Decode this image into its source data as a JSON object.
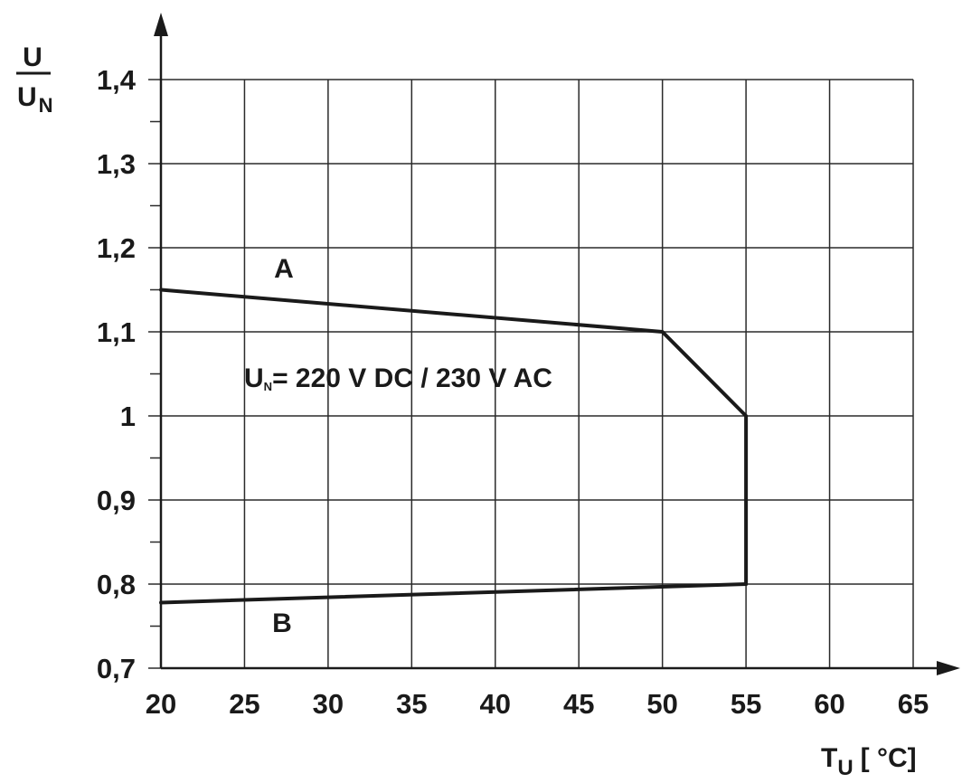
{
  "chart_data": {
    "type": "line",
    "ylabel_num": "U",
    "ylabel_den": "U",
    "ylabel_den_sub": "N",
    "xlabel_main": "T",
    "xlabel_sub": "U",
    "xlabel_unit": "[ °C]",
    "xlim": [
      20,
      65
    ],
    "ylim": [
      0.7,
      1.4
    ],
    "x_ticks": [
      20,
      25,
      30,
      35,
      40,
      45,
      50,
      55,
      60,
      65
    ],
    "x_tick_labels": [
      "20",
      "25",
      "30",
      "35",
      "40",
      "45",
      "50",
      "55",
      "60",
      "65"
    ],
    "y_ticks": [
      0.7,
      0.8,
      0.9,
      1.0,
      1.1,
      1.2,
      1.3,
      1.4
    ],
    "y_tick_labels": [
      "0,7",
      "0,8",
      "0,9",
      "1",
      "1,1",
      "1,2",
      "1,3",
      "1,4"
    ],
    "grid": true,
    "series": [
      {
        "name": "A",
        "x": [
          20,
          50,
          55,
          55
        ],
        "y": [
          1.15,
          1.1,
          1.0,
          0.8
        ]
      },
      {
        "name": "B",
        "x": [
          20,
          55
        ],
        "y": [
          0.778,
          0.8
        ]
      }
    ],
    "annotation": {
      "main": "U",
      "sub": "N",
      "rest": "= 220 V DC / 230 V AC"
    },
    "line_color": "#1a1a1a",
    "grid_color": "#2a2a2a"
  }
}
